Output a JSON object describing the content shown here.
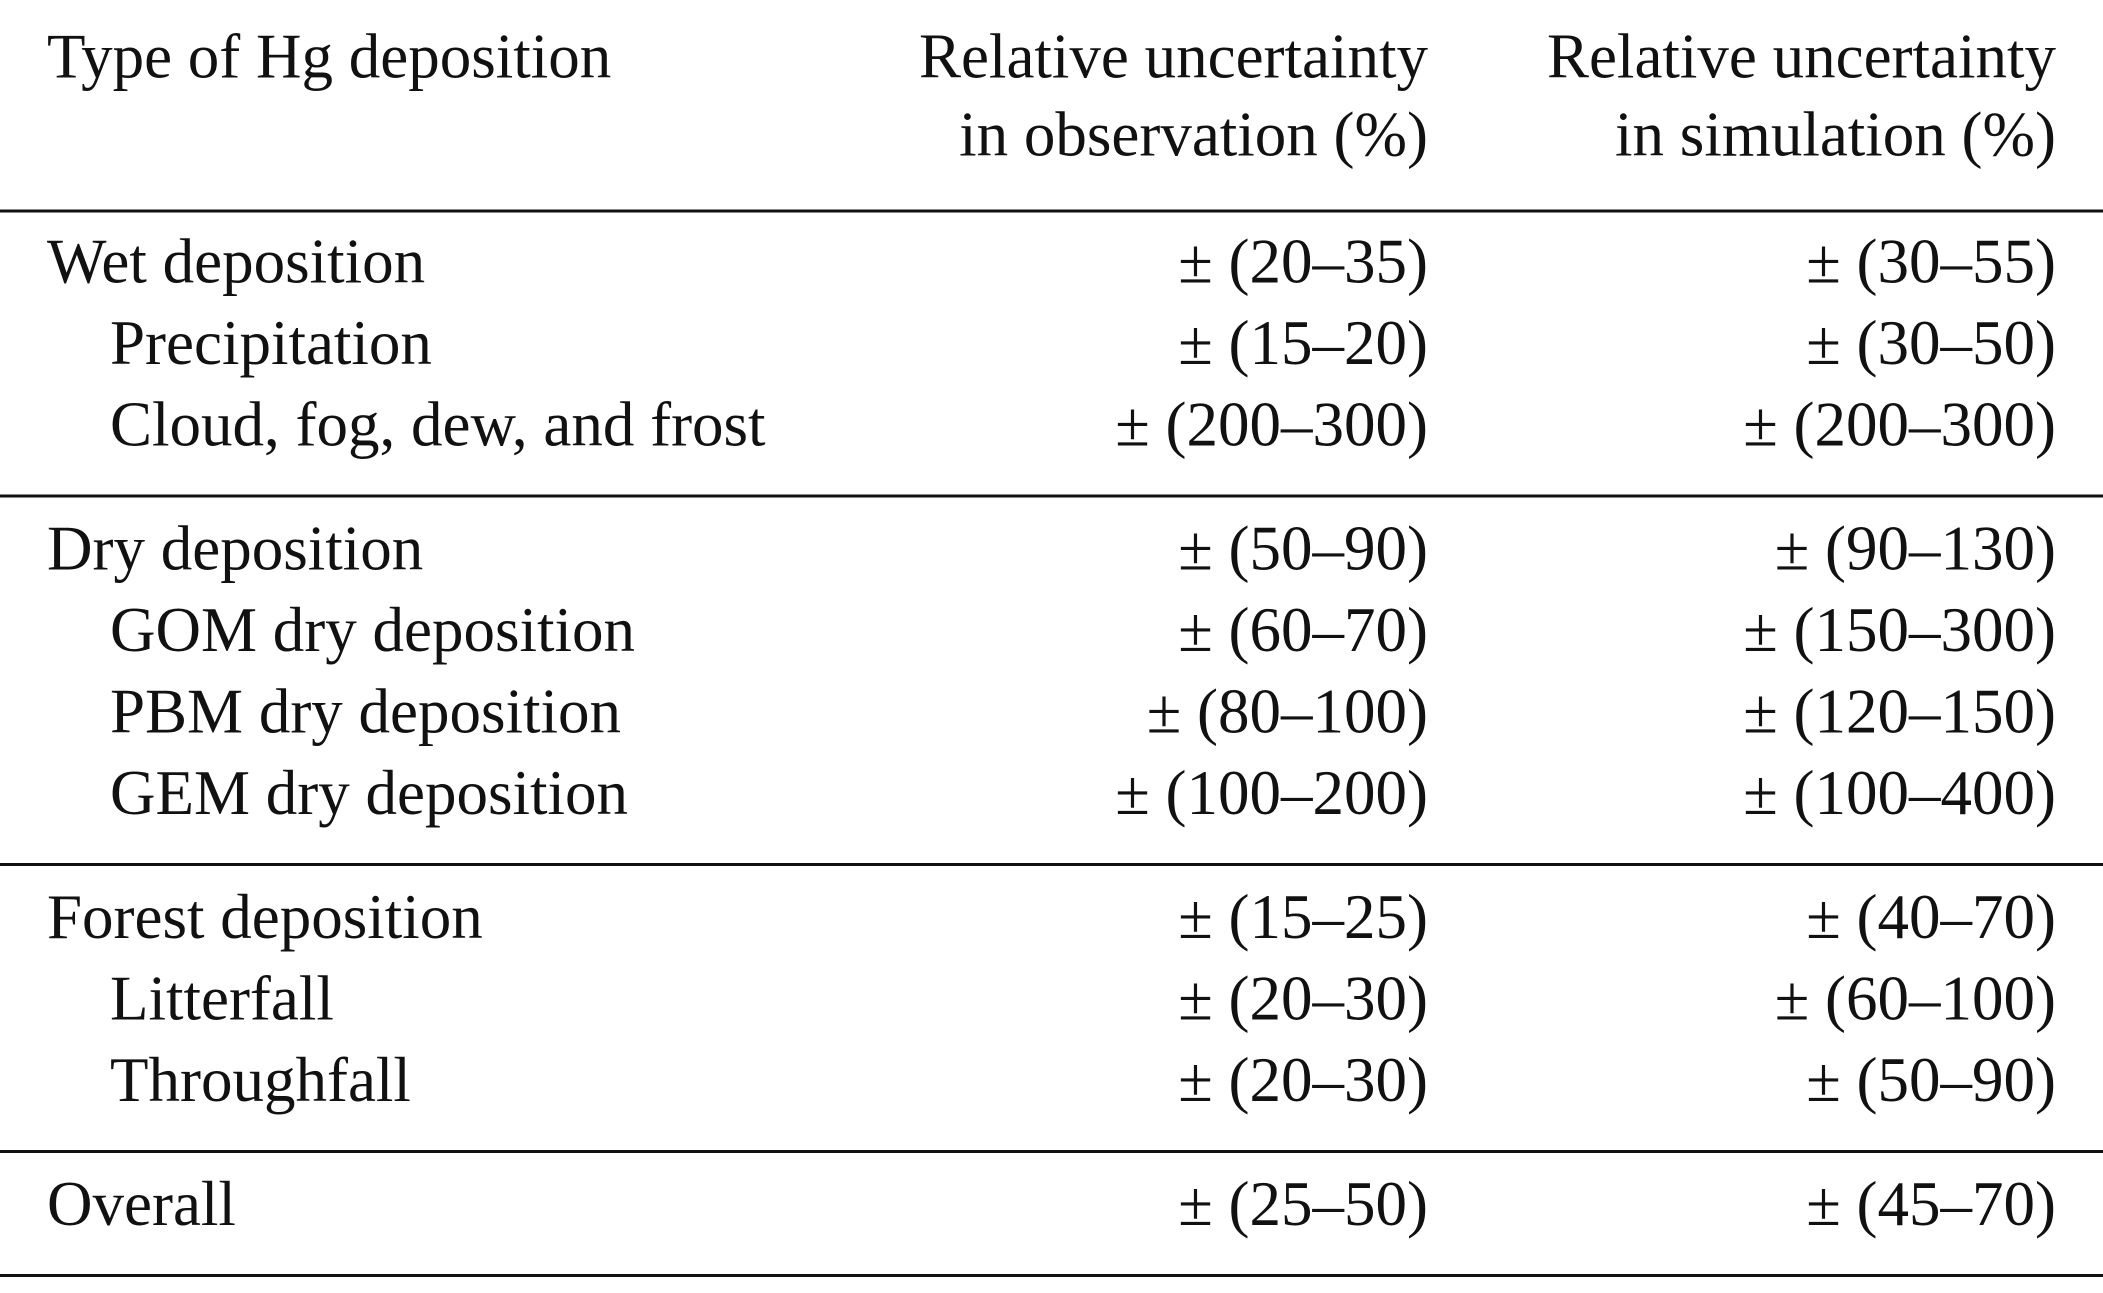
{
  "table": {
    "header": [
      [
        "Type of Hg deposition"
      ],
      [
        "Relative uncertainty",
        "in observation (%)"
      ],
      [
        "Relative uncertainty",
        "in simulation (%)"
      ]
    ],
    "sections": [
      [
        [
          "Wet deposition",
          "± (20–35)",
          "± (30–55)"
        ],
        [
          "Precipitation",
          "± (15–20)",
          "± (30–50)"
        ],
        [
          "Cloud, fog, dew, and frost",
          "± (200–300)",
          "± (200–300)"
        ]
      ],
      [
        [
          "Dry deposition",
          "± (50–90)",
          "± (90–130)"
        ],
        [
          "GOM dry deposition",
          "± (60–70)",
          "± (150–300)"
        ],
        [
          "PBM dry deposition",
          "± (80–100)",
          "± (120–150)"
        ],
        [
          "GEM dry deposition",
          "± (100–200)",
          "± (100–400)"
        ]
      ],
      [
        [
          "Forest deposition",
          "± (15–25)",
          "± (40–70)"
        ],
        [
          "Litterfall",
          "± (20–30)",
          "± (60–100)"
        ],
        [
          "Throughfall",
          "± (20–30)",
          "± (50–90)"
        ]
      ],
      [
        [
          "Overall",
          "± (25–50)",
          "± (45–70)"
        ]
      ]
    ]
  }
}
